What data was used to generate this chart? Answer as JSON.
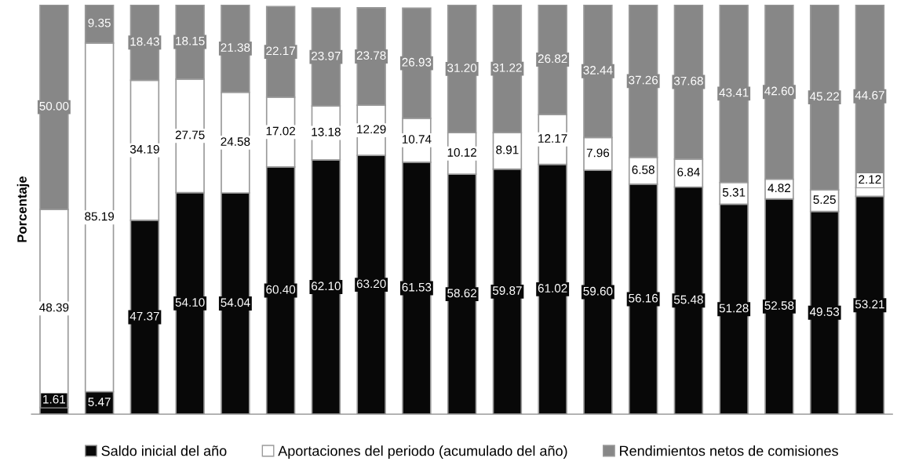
{
  "chart_data": {
    "type": "bar",
    "stacked": true,
    "ylabel": "Porcentaje",
    "legend": "bottom",
    "categories": [
      null,
      null,
      null,
      null,
      null,
      null,
      null,
      null,
      null,
      null,
      null,
      null,
      null,
      null,
      null,
      null,
      null,
      null,
      null
    ],
    "series": [
      {
        "name": "Saldo inicial del año",
        "color": "#080808",
        "values": [
          1.61,
          5.47,
          47.37,
          54.1,
          54.04,
          60.4,
          62.1,
          63.2,
          61.53,
          58.62,
          59.87,
          61.02,
          59.6,
          56.16,
          55.48,
          51.28,
          52.58,
          49.53,
          53.21
        ],
        "value_labels": [
          "1.61",
          "5.47",
          "47.37",
          "54.10",
          "54.04",
          "60.40",
          "62.10",
          "63.20",
          "61.53",
          "58.62",
          "59.87",
          "61.02",
          "59.60",
          "56.16",
          "55.48",
          "51.28",
          "52.58",
          "49.53",
          "53.21"
        ]
      },
      {
        "name": "Aportaciones del periodo (acumulado del año)",
        "color": "#ffffff",
        "values": [
          48.39,
          85.19,
          34.19,
          27.75,
          24.58,
          17.02,
          13.18,
          12.29,
          10.74,
          10.12,
          8.91,
          12.17,
          7.96,
          6.58,
          6.84,
          5.31,
          4.82,
          5.25,
          2.12
        ],
        "value_labels": [
          "48.39",
          "85.19",
          "34.19",
          "27.75",
          "24.58",
          "17.02",
          "13.18",
          "12.29",
          "10.74",
          "10.12",
          "8.91",
          "12.17",
          "7.96",
          "6.58",
          "6.84",
          "5.31",
          "4.82",
          "5.25",
          "2.12"
        ]
      },
      {
        "name": "Rendimientos netos de comisiones",
        "color": "#878787",
        "values": [
          50.0,
          9.35,
          18.43,
          18.15,
          21.38,
          22.17,
          23.97,
          23.78,
          26.93,
          31.2,
          31.22,
          26.82,
          32.44,
          37.26,
          37.68,
          43.41,
          42.6,
          45.22,
          44.67
        ],
        "value_labels": [
          "50.00",
          "9.35",
          "18.43",
          "18.15",
          "21.38",
          "22.17",
          "23.97",
          "23.78",
          "26.93",
          "31.20",
          "31.22",
          "26.82",
          "32.44",
          "37.26",
          "37.68",
          "43.41",
          "42.60",
          "45.22",
          "44.67"
        ]
      }
    ]
  }
}
